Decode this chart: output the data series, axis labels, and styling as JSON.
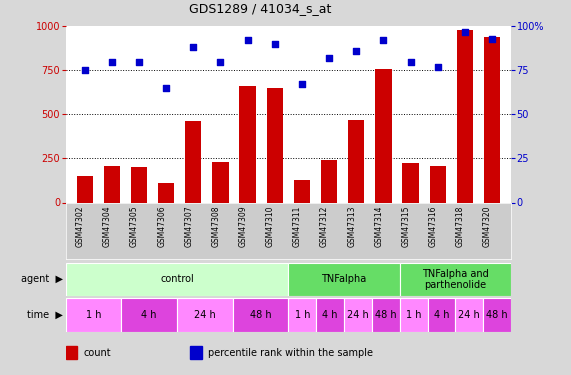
{
  "title": "GDS1289 / 41034_s_at",
  "samples": [
    "GSM47302",
    "GSM47304",
    "GSM47305",
    "GSM47306",
    "GSM47307",
    "GSM47308",
    "GSM47309",
    "GSM47310",
    "GSM47311",
    "GSM47312",
    "GSM47313",
    "GSM47314",
    "GSM47315",
    "GSM47316",
    "GSM47318",
    "GSM47320"
  ],
  "counts": [
    150,
    205,
    200,
    110,
    460,
    230,
    660,
    650,
    130,
    240,
    470,
    760,
    225,
    205,
    980,
    940
  ],
  "percentiles": [
    75,
    80,
    80,
    65,
    88,
    80,
    92,
    90,
    67,
    82,
    86,
    92,
    80,
    77,
    97,
    93
  ],
  "bar_color": "#cc0000",
  "dot_color": "#0000cc",
  "ylim_left": [
    0,
    1000
  ],
  "ylim_right": [
    0,
    100
  ],
  "yticks_left": [
    0,
    250,
    500,
    750,
    1000
  ],
  "yticks_right": [
    0,
    25,
    50,
    75,
    100
  ],
  "grid_lines": [
    250,
    500,
    750
  ],
  "agent_groups": [
    {
      "label": "control",
      "start": 0,
      "end": 8,
      "color": "#ccffcc"
    },
    {
      "label": "TNFalpha",
      "start": 8,
      "end": 12,
      "color": "#66dd66"
    },
    {
      "label": "TNFalpha and\nparthenolide",
      "start": 12,
      "end": 16,
      "color": "#66dd66"
    }
  ],
  "time_groups": [
    {
      "label": "1 h",
      "start": 0,
      "end": 2,
      "color": "#ff88ff"
    },
    {
      "label": "4 h",
      "start": 2,
      "end": 4,
      "color": "#dd44dd"
    },
    {
      "label": "24 h",
      "start": 4,
      "end": 6,
      "color": "#ff88ff"
    },
    {
      "label": "48 h",
      "start": 6,
      "end": 8,
      "color": "#dd44dd"
    },
    {
      "label": "1 h",
      "start": 8,
      "end": 9,
      "color": "#ff88ff"
    },
    {
      "label": "4 h",
      "start": 9,
      "end": 10,
      "color": "#dd44dd"
    },
    {
      "label": "24 h",
      "start": 10,
      "end": 11,
      "color": "#ff88ff"
    },
    {
      "label": "48 h",
      "start": 11,
      "end": 12,
      "color": "#dd44dd"
    },
    {
      "label": "1 h",
      "start": 12,
      "end": 13,
      "color": "#ff88ff"
    },
    {
      "label": "4 h",
      "start": 13,
      "end": 14,
      "color": "#dd44dd"
    },
    {
      "label": "24 h",
      "start": 14,
      "end": 15,
      "color": "#ff88ff"
    },
    {
      "label": "48 h",
      "start": 15,
      "end": 16,
      "color": "#dd44dd"
    }
  ],
  "legend_items": [
    {
      "label": "count",
      "color": "#cc0000"
    },
    {
      "label": "percentile rank within the sample",
      "color": "#0000cc"
    }
  ],
  "bg_color": "#d8d8d8",
  "plot_bg": "#ffffff",
  "tick_bg": "#cccccc"
}
